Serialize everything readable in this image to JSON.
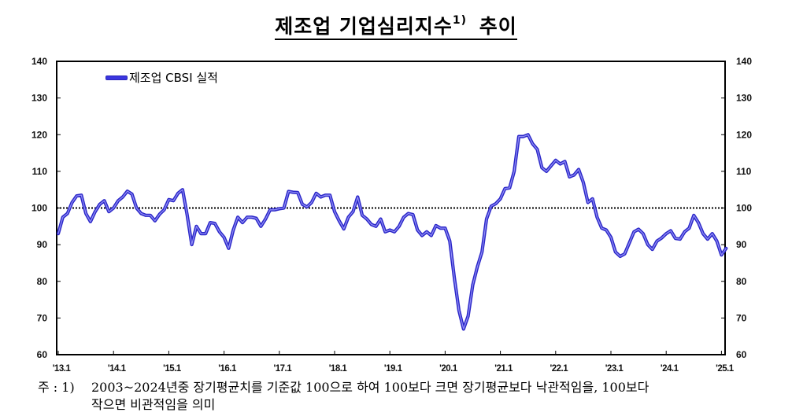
{
  "title": {
    "main": "제조업 기업심리지수",
    "superscript": "1)",
    "suffix": "추이"
  },
  "legend": {
    "label": "제조업 CBSI 실적",
    "color": "#3b36e0"
  },
  "note": {
    "prefix": "주 : 1)",
    "line1": "2003~2024년중 장기평균치를 기준값 100으로 하여 100보다 크면 장기평균보다 낙관적임을, 100보다",
    "line2": "작으면 비관적임을 의미"
  },
  "chart_data": {
    "type": "line",
    "title": "제조업 기업심리지수 추이",
    "xlabel": "",
    "ylabel": "",
    "ylim": [
      60,
      140
    ],
    "yticks": [
      60,
      70,
      80,
      90,
      100,
      110,
      120,
      130,
      140
    ],
    "y2ticks": [
      60,
      70,
      80,
      90,
      100,
      110,
      120,
      130,
      140
    ],
    "xtick_labels": [
      "'13.1",
      "'14.1",
      "'15.1",
      "'16.1",
      "'17.1",
      "'18.1",
      "'19.1",
      "'20.1",
      "'21.1",
      "'22.1",
      "'23.1",
      "'24.1",
      "'25.1"
    ],
    "reference_line": {
      "value": 100,
      "style": "dotted",
      "color": "#000000"
    },
    "grid": false,
    "legend_position": "top-left",
    "x_start": "2013-01",
    "x_end": "2025-02",
    "frequency": "monthly",
    "series": [
      {
        "name": "제조업 CBSI 실적",
        "color": "#3b36e0",
        "values": [
          93.0,
          97.5,
          98.5,
          101.5,
          103.3,
          103.5,
          98.5,
          96.3,
          99.0,
          101.0,
          102.0,
          99.0,
          100.0,
          102.0,
          103.0,
          104.6,
          103.8,
          100.0,
          98.5,
          98.0,
          98.0,
          96.5,
          98.3,
          99.5,
          102.3,
          102.0,
          104.0,
          105.0,
          98.0,
          90.0,
          95.0,
          93.0,
          93.0,
          96.0,
          95.8,
          93.5,
          92.0,
          89.0,
          94.0,
          97.5,
          96.0,
          97.5,
          97.5,
          97.2,
          95.0,
          97.0,
          99.5,
          99.5,
          99.8,
          100.0,
          104.5,
          104.3,
          104.2,
          101.0,
          100.3,
          101.5,
          104.0,
          103.0,
          103.5,
          103.5,
          99.0,
          96.5,
          94.3,
          97.5,
          99.0,
          103.0,
          98.0,
          97.0,
          95.5,
          95.0,
          97.0,
          93.5,
          94.0,
          93.5,
          95.0,
          97.5,
          98.5,
          98.2,
          94.0,
          92.5,
          93.5,
          92.5,
          95.2,
          94.5,
          94.5,
          91.0,
          81.0,
          72.0,
          67.0,
          70.5,
          79.0,
          84.0,
          88.0,
          97.0,
          100.5,
          101.2,
          102.5,
          105.3,
          105.5,
          110.0,
          119.5,
          119.5,
          120.0,
          117.5,
          116.0,
          111.0,
          110.0,
          111.5,
          113.0,
          112.0,
          112.7,
          108.5,
          109.0,
          110.5,
          107.0,
          101.5,
          102.5,
          97.5,
          94.5,
          94.0,
          92.0,
          88.0,
          86.8,
          87.5,
          90.5,
          93.5,
          94.2,
          93.0,
          90.0,
          88.7,
          91.0,
          91.8,
          93.0,
          93.8,
          91.7,
          91.5,
          93.5,
          94.5,
          98.0,
          96.0,
          93.0,
          91.5,
          93.0,
          91.0,
          87.2,
          89.0
        ]
      }
    ]
  }
}
